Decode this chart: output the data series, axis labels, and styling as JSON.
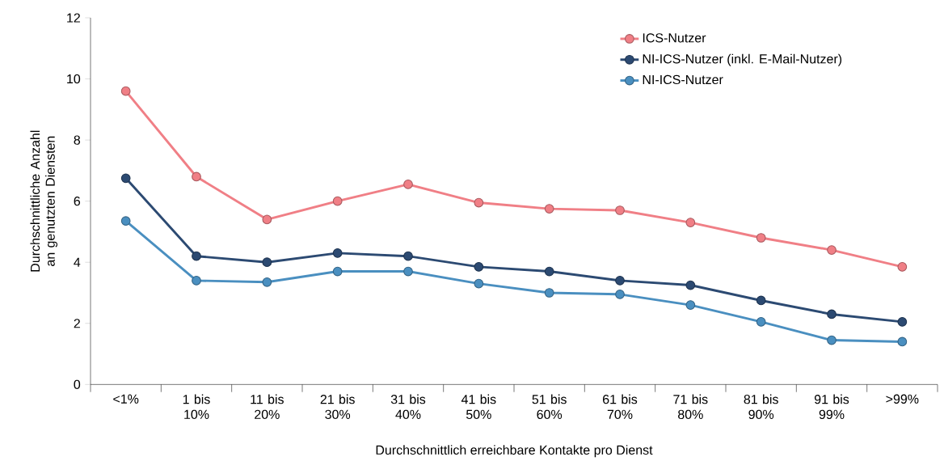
{
  "chart_data": {
    "type": "line",
    "xlabel": "Durchschnittlich erreichbare Kontakte pro Dienst",
    "ylabel": "Durchschnittliche Anzahl an genutzten Diensten",
    "categories": [
      "<1%",
      "1 bis 10%",
      "11 bis 20%",
      "21 bis 30%",
      "31 bis 40%",
      "41 bis 50%",
      "51 bis 60%",
      "61 bis 70%",
      "71 bis 80%",
      "81 bis 90%",
      "91 bis 99%",
      ">99%"
    ],
    "series": [
      {
        "name": "ICS-Nutzer",
        "color": "#f07f86",
        "values": [
          9.6,
          6.8,
          5.4,
          6.0,
          6.55,
          5.95,
          5.75,
          5.7,
          5.3,
          4.8,
          4.4,
          3.85
        ]
      },
      {
        "name": "NI-ICS-Nutzer (inkl. E-Mail-Nutzer)",
        "color": "#2c4a72",
        "values": [
          6.75,
          4.2,
          4.0,
          4.3,
          4.2,
          3.85,
          3.7,
          3.4,
          3.25,
          2.75,
          2.3,
          2.05
        ]
      },
      {
        "name": "NI-ICS-Nutzer",
        "color": "#4a8fc0",
        "values": [
          5.35,
          3.4,
          3.35,
          3.7,
          3.7,
          3.3,
          3.0,
          2.95,
          2.6,
          2.05,
          1.45,
          1.4
        ]
      }
    ],
    "ylim": [
      0,
      12
    ],
    "yticks": [
      0,
      2,
      4,
      6,
      8,
      10,
      12
    ],
    "grid": false,
    "legend": "top right",
    "marker": "circle",
    "line_style": "solid"
  }
}
